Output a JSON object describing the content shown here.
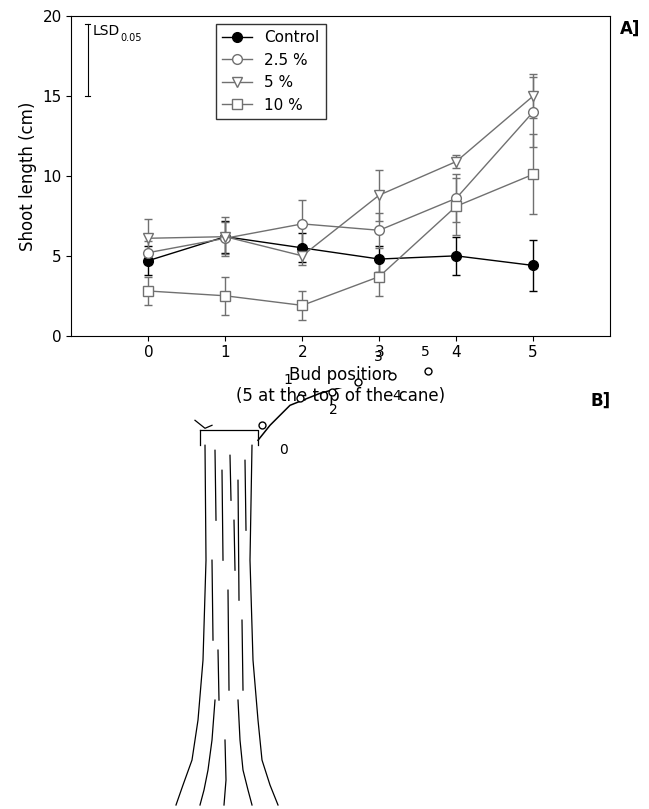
{
  "chart_data": {
    "type": "line",
    "panel_label": "A]",
    "x_label": "Bud position\n(5 at the top of the cane)",
    "y_label": "Shoot length (cm)",
    "x": [
      0,
      1,
      2,
      3,
      4,
      5
    ],
    "xlim": [
      -1,
      6
    ],
    "xticks": [
      0,
      1,
      2,
      3,
      4,
      5
    ],
    "ylim": [
      0,
      20
    ],
    "yticks": [
      0,
      5,
      10,
      15,
      20
    ],
    "grid": false,
    "legend": "upper center",
    "lsd": {
      "label": "LSD",
      "subscript": "0.05",
      "value": 4.5
    },
    "series": [
      {
        "name": "Control",
        "color": "#000000",
        "marker": "circle",
        "values": [
          4.7,
          6.2,
          5.5,
          4.8,
          5.0,
          4.4
        ],
        "errors": [
          0.9,
          1.0,
          0.9,
          0.8,
          1.2,
          1.6
        ]
      },
      {
        "name": "2.5 %",
        "color": "#707070",
        "marker": "open_circle",
        "values": [
          5.2,
          6.1,
          7.0,
          6.6,
          8.6,
          14.0
        ],
        "errors": [
          0.7,
          1.0,
          1.5,
          1.1,
          1.5,
          2.2
        ]
      },
      {
        "name": "5 %",
        "color": "#707070",
        "marker": "open_triangle_down",
        "values": [
          6.1,
          6.2,
          5.0,
          8.8,
          10.9,
          15.0
        ],
        "errors": [
          1.2,
          1.2,
          0.6,
          1.6,
          0.4,
          1.4
        ]
      },
      {
        "name": "10 %",
        "color": "#707070",
        "marker": "open_square",
        "values": [
          2.8,
          2.5,
          1.9,
          3.7,
          8.1,
          10.1
        ],
        "errors": [
          0.9,
          1.2,
          0.9,
          1.2,
          1.8,
          2.5
        ]
      }
    ]
  },
  "diagram": {
    "panel_label": "B]",
    "bud_labels": [
      0,
      1,
      2,
      3,
      4,
      5
    ]
  }
}
